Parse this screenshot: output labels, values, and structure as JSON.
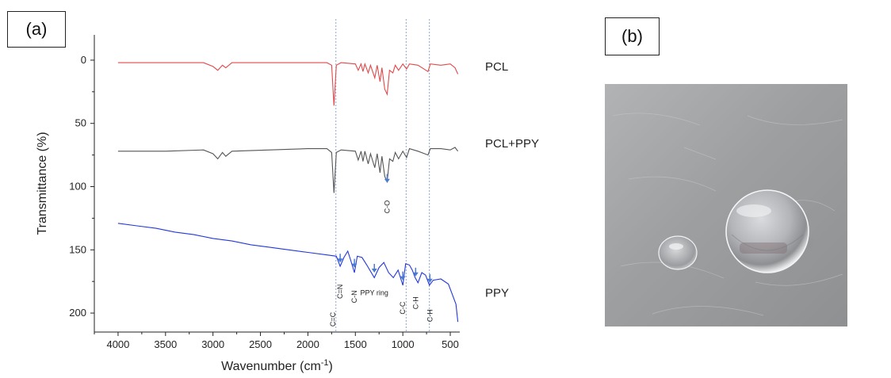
{
  "panels": {
    "a_label": "(a)",
    "b_label": "(b)"
  },
  "chart_data": {
    "type": "line",
    "xlabel_text": "Wavenumber (cm",
    "xlabel_sup": "-1",
    "xlabel_close": ")",
    "ylabel": "Transmittance (%)",
    "xlim": [
      4250,
      400
    ],
    "ylim": [
      215,
      -20
    ],
    "x_ticks": [
      4000,
      3500,
      3000,
      2500,
      2000,
      1500,
      1000,
      500
    ],
    "y_ticks": [
      0,
      50,
      100,
      150,
      200
    ],
    "series": [
      {
        "name": "PCL",
        "color": "#e0494a",
        "points": [
          [
            4000,
            2
          ],
          [
            3500,
            2
          ],
          [
            3100,
            2
          ],
          [
            3000,
            5
          ],
          [
            2950,
            8
          ],
          [
            2900,
            4
          ],
          [
            2865,
            6
          ],
          [
            2800,
            2
          ],
          [
            2400,
            2
          ],
          [
            2000,
            2
          ],
          [
            1800,
            2
          ],
          [
            1750,
            4
          ],
          [
            1725,
            36
          ],
          [
            1700,
            4
          ],
          [
            1650,
            2
          ],
          [
            1500,
            3
          ],
          [
            1470,
            8
          ],
          [
            1440,
            3
          ],
          [
            1420,
            9
          ],
          [
            1400,
            3
          ],
          [
            1365,
            10
          ],
          [
            1340,
            4
          ],
          [
            1295,
            14
          ],
          [
            1270,
            4
          ],
          [
            1240,
            17
          ],
          [
            1220,
            6
          ],
          [
            1190,
            23
          ],
          [
            1165,
            27
          ],
          [
            1140,
            8
          ],
          [
            1105,
            10
          ],
          [
            1080,
            4
          ],
          [
            1045,
            8
          ],
          [
            1000,
            3
          ],
          [
            960,
            7
          ],
          [
            930,
            3
          ],
          [
            840,
            4
          ],
          [
            735,
            9
          ],
          [
            710,
            3
          ],
          [
            600,
            4
          ],
          [
            500,
            3
          ],
          [
            450,
            6
          ],
          [
            420,
            11
          ]
        ]
      },
      {
        "name": "PCL+PPY",
        "color": "#555555",
        "points": [
          [
            4000,
            72
          ],
          [
            3500,
            72
          ],
          [
            3100,
            71
          ],
          [
            3000,
            74
          ],
          [
            2950,
            78
          ],
          [
            2900,
            73
          ],
          [
            2865,
            76
          ],
          [
            2800,
            72
          ],
          [
            2400,
            71
          ],
          [
            2000,
            70
          ],
          [
            1800,
            70
          ],
          [
            1750,
            73
          ],
          [
            1725,
            105
          ],
          [
            1700,
            73
          ],
          [
            1650,
            71
          ],
          [
            1500,
            72
          ],
          [
            1470,
            79
          ],
          [
            1440,
            72
          ],
          [
            1420,
            80
          ],
          [
            1400,
            72
          ],
          [
            1365,
            82
          ],
          [
            1340,
            74
          ],
          [
            1295,
            85
          ],
          [
            1270,
            74
          ],
          [
            1240,
            89
          ],
          [
            1220,
            76
          ],
          [
            1190,
            92
          ],
          [
            1165,
            96
          ],
          [
            1140,
            78
          ],
          [
            1105,
            80
          ],
          [
            1080,
            73
          ],
          [
            1045,
            78
          ],
          [
            1000,
            72
          ],
          [
            960,
            77
          ],
          [
            930,
            70
          ],
          [
            840,
            72
          ],
          [
            735,
            75
          ],
          [
            710,
            70
          ],
          [
            600,
            70
          ],
          [
            500,
            71
          ],
          [
            450,
            69
          ],
          [
            420,
            72
          ]
        ]
      },
      {
        "name": "PPY",
        "color": "#2438d9",
        "points": [
          [
            4000,
            129
          ],
          [
            3800,
            131
          ],
          [
            3600,
            133
          ],
          [
            3400,
            136
          ],
          [
            3200,
            138
          ],
          [
            3000,
            141
          ],
          [
            2800,
            143
          ],
          [
            2600,
            146
          ],
          [
            2400,
            148
          ],
          [
            2200,
            150
          ],
          [
            2000,
            152
          ],
          [
            1800,
            154
          ],
          [
            1700,
            155
          ],
          [
            1660,
            163
          ],
          [
            1620,
            156
          ],
          [
            1580,
            151
          ],
          [
            1550,
            158
          ],
          [
            1510,
            168
          ],
          [
            1480,
            155
          ],
          [
            1430,
            156
          ],
          [
            1380,
            162
          ],
          [
            1300,
            172
          ],
          [
            1250,
            164
          ],
          [
            1200,
            160
          ],
          [
            1150,
            168
          ],
          [
            1100,
            172
          ],
          [
            1050,
            166
          ],
          [
            1000,
            178
          ],
          [
            970,
            161
          ],
          [
            930,
            162
          ],
          [
            900,
            166
          ],
          [
            870,
            172
          ],
          [
            840,
            176
          ],
          [
            800,
            168
          ],
          [
            760,
            170
          ],
          [
            720,
            178
          ],
          [
            680,
            174
          ],
          [
            600,
            173
          ],
          [
            520,
            177
          ],
          [
            480,
            185
          ],
          [
            440,
            193
          ],
          [
            420,
            207
          ]
        ]
      }
    ],
    "series_labels": [
      {
        "text": "PCL",
        "y": 5
      },
      {
        "text": "PCL+PPY",
        "y": 66
      },
      {
        "text": "PPY",
        "y": 184
      }
    ],
    "reference_lines_x": [
      1705,
      965,
      720
    ],
    "annotations": [
      {
        "text": "C-O",
        "x": 1165,
        "arrow_tip_y": 97,
        "text_y": 116,
        "rotated": true
      },
      {
        "text": "C=N",
        "x": 1660,
        "arrow_tip_y": 160,
        "text_y": 183,
        "rotated": true
      },
      {
        "text": "C-N",
        "x": 1510,
        "arrow_tip_y": 164,
        "text_y": 187,
        "rotated": true
      },
      {
        "text": "PPY ring",
        "x": 1300,
        "arrow_tip_y": 168,
        "text_y": 186,
        "rotated": false
      },
      {
        "text": "C-C",
        "x": 1000,
        "arrow_tip_y": 174,
        "text_y": 196,
        "rotated": true
      },
      {
        "text": "C-H",
        "x": 865,
        "arrow_tip_y": 171,
        "text_y": 192,
        "rotated": true
      },
      {
        "text": "C-H",
        "x": 715,
        "arrow_tip_y": 176,
        "text_y": 202,
        "rotated": true
      },
      {
        "text": "C=C",
        "x": 1735,
        "arrow_tip_y": null,
        "text_y": 205,
        "rotated": true
      }
    ],
    "grid": false
  },
  "photo": {
    "background": "#9c9ea0",
    "droplets": [
      {
        "name": "small-droplet",
        "size": "small"
      },
      {
        "name": "large-droplet",
        "size": "large"
      }
    ]
  }
}
